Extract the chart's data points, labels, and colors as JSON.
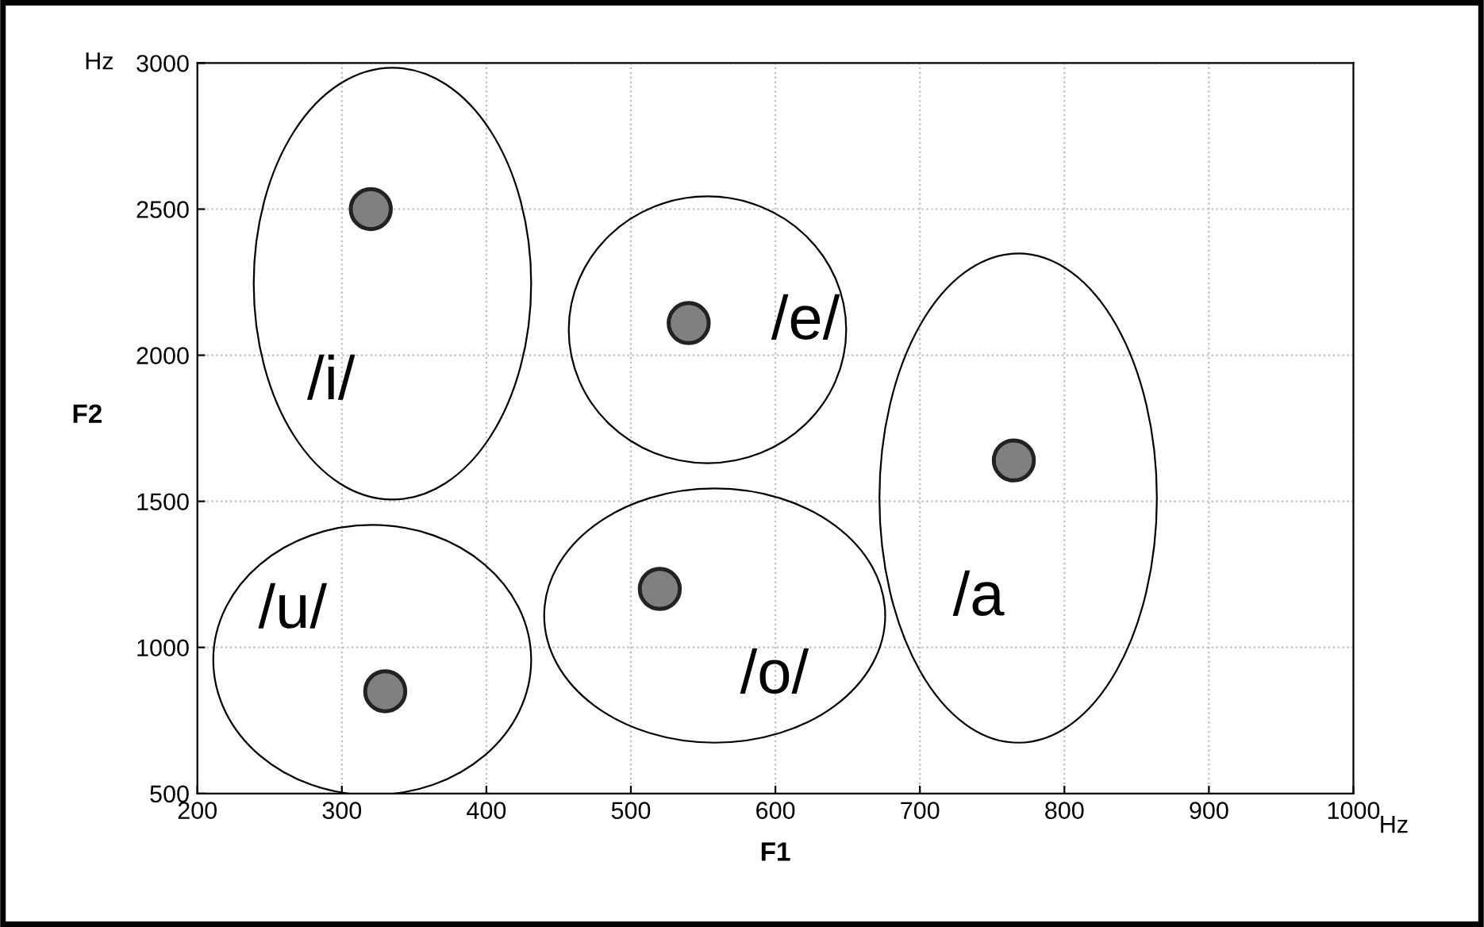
{
  "chart_data": {
    "type": "scatter",
    "xlabel": "F1",
    "ylabel": "F2",
    "x": [
      320,
      540,
      765,
      520,
      330
    ],
    "values": [
      2500,
      2110,
      1640,
      1200,
      850
    ],
    "color": "#808080",
    "marker": "circle",
    "xlim": [
      200,
      1000
    ],
    "ylim": [
      500,
      3000
    ],
    "xticks": [
      200,
      300,
      400,
      500,
      600,
      700,
      800,
      900,
      1000
    ],
    "yticks": [
      500,
      1000,
      1500,
      2000,
      2500,
      3000
    ],
    "grid": true,
    "annotations": [
      {
        "text": "/i/",
        "x": 320,
        "y": 2500
      },
      {
        "text": "/e/",
        "x": 540,
        "y": 2110
      },
      {
        "text": "/a",
        "x": 765,
        "y": 1640
      },
      {
        "text": "/o/",
        "x": 520,
        "y": 1200
      },
      {
        "text": "/u/",
        "x": 330,
        "y": 850
      },
      "Hz",
      "Hz"
    ]
  }
}
